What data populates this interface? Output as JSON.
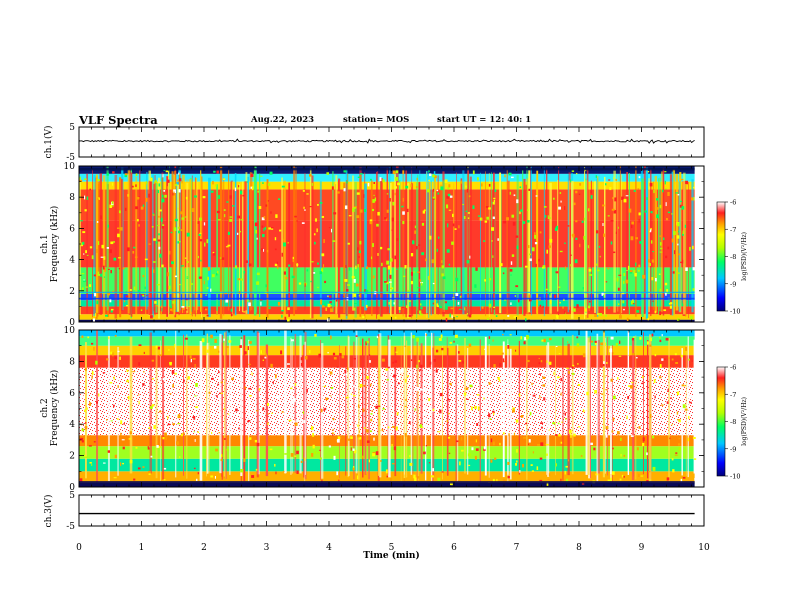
{
  "header": {
    "title": "VLF Spectra",
    "date": "Aug.22, 2023",
    "station": "station= MOS",
    "start_time": "start  UT =   12: 40: 1"
  },
  "chart_data": [
    {
      "type": "line",
      "panel": "ch1-waveform",
      "ylabel": "ch.1(V)",
      "ylim": [
        -5,
        5
      ],
      "yticks": [
        "5",
        "-5"
      ],
      "x": [
        0,
        9.85
      ],
      "series": [
        {
          "values": [
            0.3,
            0.3
          ]
        }
      ]
    },
    {
      "type": "heatmap",
      "panel": "ch1-spectrogram",
      "ylabel_top": "ch.1",
      "ylabel": "Frequency (kHz)",
      "ylim": [
        0,
        10
      ],
      "yticks": [
        "0",
        "2",
        "4",
        "6",
        "8",
        "10"
      ],
      "x_extent": [
        0,
        9.85
      ],
      "colorbar": {
        "label": "log(PSD)(V²/Hz)",
        "ticks": [
          "-6",
          "-7",
          "-8",
          "-9",
          "-10"
        ],
        "range": [
          -10,
          -6
        ],
        "scale": "log"
      }
    },
    {
      "type": "heatmap",
      "panel": "ch2-spectrogram",
      "ylabel_top": "ch.2",
      "ylabel": "Frequency (kHz)",
      "ylim": [
        0,
        10
      ],
      "yticks": [
        "0",
        "2",
        "4",
        "6",
        "8",
        "10"
      ],
      "x_extent": [
        0,
        9.85
      ],
      "colorbar": {
        "label": "log(PSD)(V²/Hz)",
        "ticks": [
          "-6",
          "-7",
          "-8",
          "-9",
          "-10"
        ],
        "range": [
          -10,
          -6
        ],
        "scale": "log"
      }
    },
    {
      "type": "line",
      "panel": "ch3-waveform",
      "ylabel": "ch.3(V)",
      "ylim": [
        -5,
        5
      ],
      "yticks": [
        "5",
        "-5"
      ],
      "x": [
        0,
        9.85
      ],
      "series": [
        {
          "values": [
            -1.0,
            -1.0
          ]
        }
      ]
    }
  ],
  "x_axis": {
    "label": "Time (min)",
    "ticks": [
      "0",
      "1",
      "2",
      "3",
      "4",
      "5",
      "6",
      "7",
      "8",
      "9",
      "10"
    ],
    "range": [
      0,
      10
    ]
  }
}
